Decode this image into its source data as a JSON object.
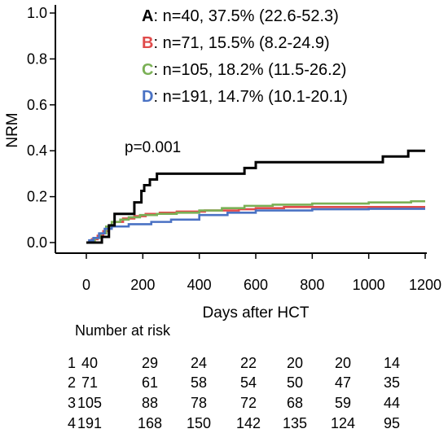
{
  "chart_data": {
    "type": "line",
    "step": true,
    "ylabel": "NRM",
    "xlabel": "Days after HCT",
    "xlim": [
      0,
      1200
    ],
    "ylim": [
      0,
      1.0
    ],
    "xticks": [
      "0",
      "200",
      "400",
      "600",
      "800",
      "1000",
      "1200"
    ],
    "yticks": [
      "0.0",
      "0.2",
      "0.4",
      "0.6",
      "0.8",
      "1.0"
    ],
    "grid": false,
    "legend_position": "top-right",
    "annotation": "p=0.001",
    "series": [
      {
        "name": "A",
        "legend_text": ": n=40, 37.5% (22.6-52.3)",
        "color": "#000000",
        "x": [
          0,
          30,
          55,
          80,
          100,
          150,
          170,
          195,
          205,
          225,
          250,
          275,
          290,
          560,
          600,
          1050,
          1100,
          1140,
          1200
        ],
        "y": [
          0,
          0,
          0.025,
          0.075,
          0.125,
          0.125,
          0.175,
          0.225,
          0.25,
          0.275,
          0.3,
          0.3,
          0.3,
          0.325,
          0.35,
          0.375,
          0.375,
          0.4,
          0.4
        ]
      },
      {
        "name": "B",
        "legend_text": ": n=71, 15.5% (8.2-24.9)",
        "color": "#e04b4b",
        "x": [
          0,
          20,
          40,
          60,
          80,
          100,
          130,
          170,
          210,
          260,
          320,
          420,
          540,
          600,
          700,
          1200
        ],
        "y": [
          0,
          0.015,
          0.03,
          0.05,
          0.075,
          0.09,
          0.105,
          0.115,
          0.125,
          0.13,
          0.135,
          0.14,
          0.145,
          0.15,
          0.155,
          0.155
        ]
      },
      {
        "name": "C",
        "legend_text": ": n=105, 18.2% (11.5-26.2)",
        "color": "#7ab055",
        "x": [
          0,
          15,
          30,
          50,
          70,
          90,
          120,
          150,
          190,
          250,
          320,
          400,
          480,
          560,
          660,
          800,
          1000,
          1150,
          1200
        ],
        "y": [
          0,
          0.01,
          0.02,
          0.04,
          0.07,
          0.09,
          0.1,
          0.11,
          0.12,
          0.125,
          0.13,
          0.14,
          0.15,
          0.16,
          0.165,
          0.17,
          0.175,
          0.18,
          0.18
        ]
      },
      {
        "name": "D",
        "legend_text": ": n=191, 14.7% (10.1-20.1)",
        "color": "#4a72c4",
        "x": [
          0,
          10,
          25,
          45,
          65,
          90,
          150,
          230,
          300,
          400,
          500,
          600,
          800,
          1000,
          1200
        ],
        "y": [
          0,
          0.01,
          0.02,
          0.04,
          0.06,
          0.07,
          0.08,
          0.09,
          0.1,
          0.12,
          0.13,
          0.14,
          0.145,
          0.147,
          0.147
        ]
      }
    ]
  },
  "risk_table": {
    "title": "Number at risk",
    "rows": [
      {
        "group": "1",
        "values": [
          "40",
          "29",
          "24",
          "22",
          "20",
          "20",
          "14"
        ]
      },
      {
        "group": "2",
        "values": [
          "71",
          "61",
          "58",
          "54",
          "50",
          "47",
          "35"
        ]
      },
      {
        "group": "3",
        "values": [
          "105",
          "88",
          "78",
          "72",
          "68",
          "59",
          "44"
        ]
      },
      {
        "group": "4",
        "values": [
          "191",
          "168",
          "150",
          "142",
          "135",
          "124",
          "95"
        ]
      }
    ]
  }
}
